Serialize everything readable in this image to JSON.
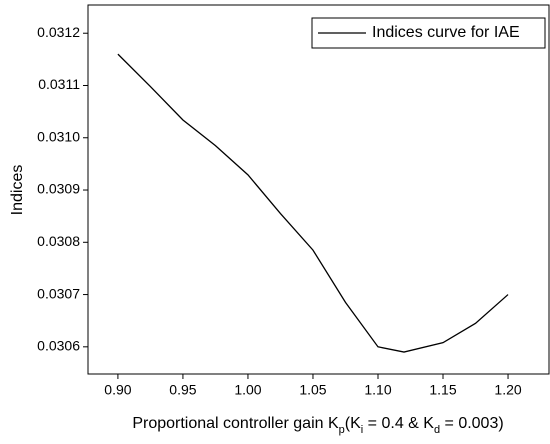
{
  "chart_data": {
    "type": "line",
    "xlabel": [
      "Proportional controller gain K",
      "p",
      "(K",
      "i",
      " = 0.4 & K",
      "d",
      " = 0.003)"
    ],
    "ylabel": "Indices",
    "x": [
      0.9,
      0.925,
      0.95,
      0.975,
      1.0,
      1.025,
      1.05,
      1.075,
      1.1,
      1.12,
      1.15,
      1.175,
      1.2
    ],
    "series": [
      {
        "name": "Indices curve for IAE",
        "color": "#000000",
        "values": [
          0.03116,
          0.031098,
          0.031034,
          0.030985,
          0.030929,
          0.030855,
          0.030785,
          0.030685,
          0.0306,
          0.03059,
          0.030608,
          0.030645,
          0.0307
        ]
      }
    ],
    "xlim": [
      0.877,
      1.2315
    ],
    "ylim": [
      0.030548,
      0.031254
    ],
    "xticks": [
      {
        "value": 0.9,
        "label": "0.90"
      },
      0.95,
      {
        "value": 1.0,
        "label": "1.00"
      },
      1.05,
      {
        "value": 1.1,
        "label": "1.10"
      },
      1.15,
      {
        "value": 1.2,
        "label": "1.20"
      }
    ],
    "yticks": [
      0.0306,
      0.0307,
      0.0308,
      0.0309,
      {
        "value": 0.031,
        "label": "0.0310"
      },
      0.0311,
      0.0312
    ],
    "legend": "upper right"
  }
}
